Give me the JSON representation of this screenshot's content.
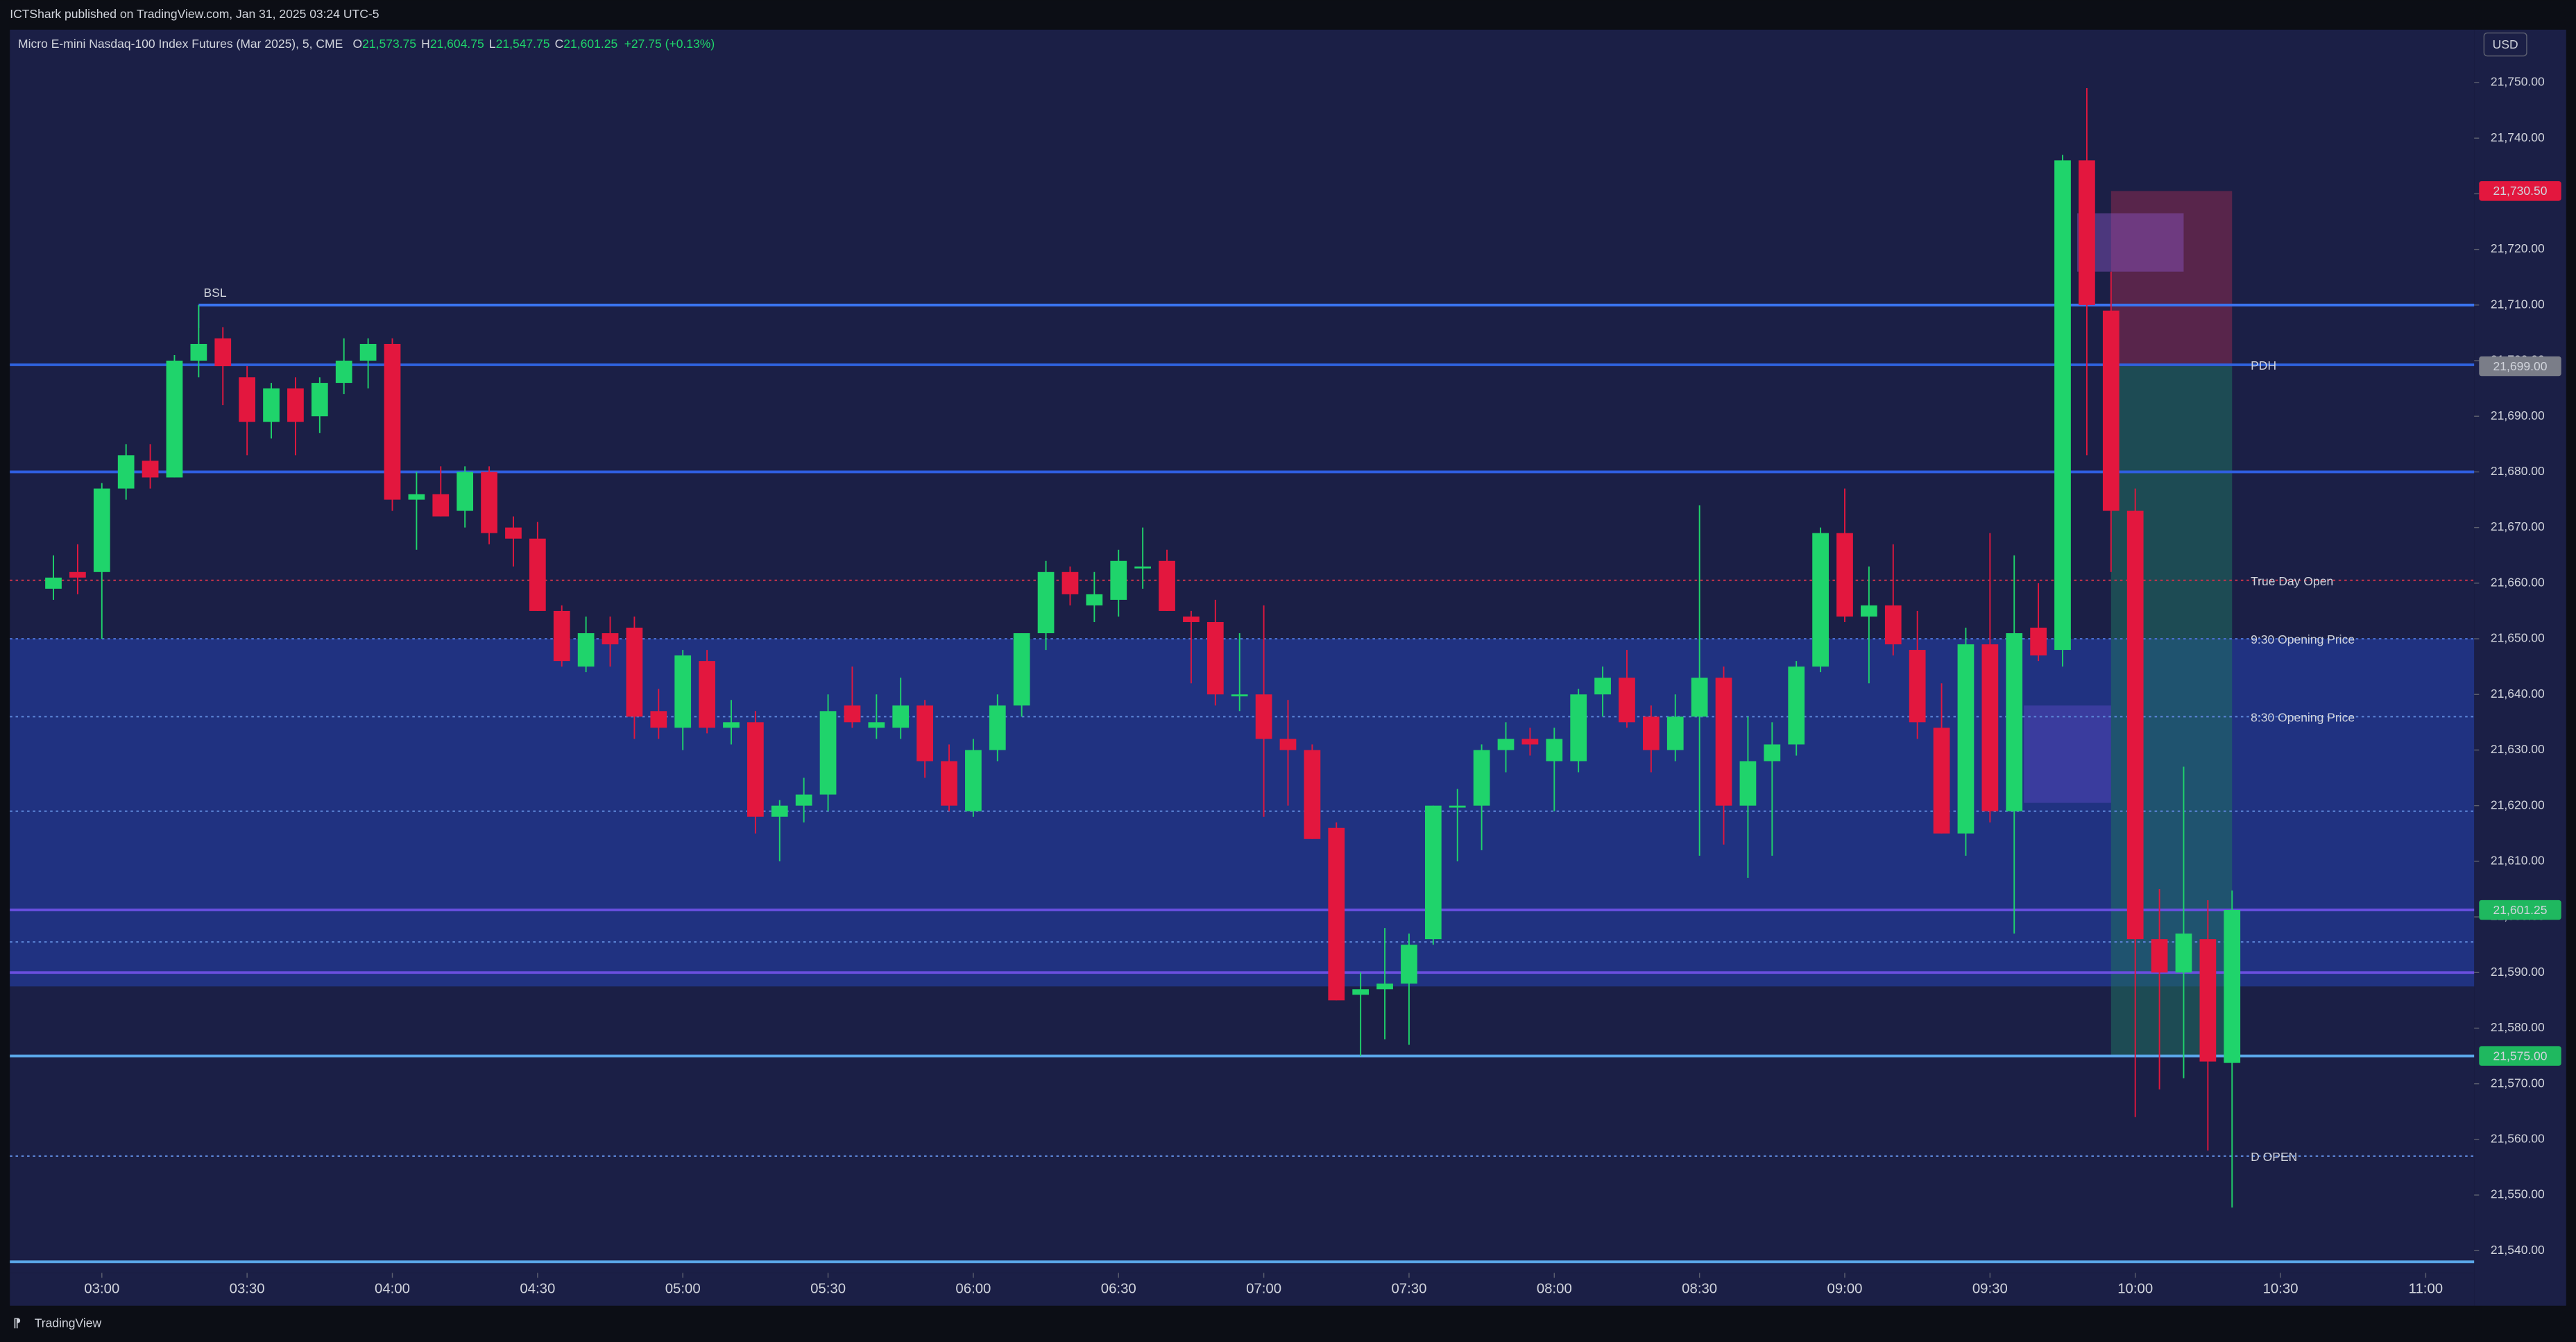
{
  "chart_data": {
    "type": "candlestick",
    "attribution": "ICTShark published on TradingView.com, Jan 31, 2025 03:24 UTC-5",
    "title": "Micro E-mini Nasdaq-100 Index Futures (Mar 2025), 5, CME",
    "ohlc": [
      {
        "key": "O",
        "text": "21,573.75"
      },
      {
        "key": "H",
        "text": "21,604.75"
      },
      {
        "key": "L",
        "text": "21,547.75"
      },
      {
        "key": "C",
        "text": "21,601.25"
      }
    ],
    "change": "+27.75 (+0.13%)",
    "currency": "USD",
    "brand": "TradingView",
    "up_color": "#1fd46b",
    "down_color": "#e3173e",
    "grid": false,
    "x": [
      "02:50",
      "02:55",
      "03:00",
      "03:05",
      "03:10",
      "03:15",
      "03:20",
      "03:25",
      "03:30",
      "03:35",
      "03:40",
      "03:45",
      "03:50",
      "03:55",
      "04:00",
      "04:05",
      "04:10",
      "04:15",
      "04:20",
      "04:25",
      "04:30",
      "04:35",
      "04:40",
      "04:45",
      "04:50",
      "04:55",
      "05:00",
      "05:05",
      "05:10",
      "05:15",
      "05:20",
      "05:25",
      "05:30",
      "05:35",
      "05:40",
      "05:45",
      "05:50",
      "05:55",
      "06:00",
      "06:05",
      "06:10",
      "06:15",
      "06:20",
      "06:25",
      "06:30",
      "06:35",
      "06:40",
      "06:45",
      "06:50",
      "06:55",
      "07:00",
      "07:05",
      "07:10",
      "07:15",
      "07:20",
      "07:25",
      "07:30",
      "07:35",
      "07:40",
      "07:45",
      "07:50",
      "07:55",
      "08:00",
      "08:05",
      "08:10",
      "08:15",
      "08:20",
      "08:25",
      "08:30",
      "08:35",
      "08:40",
      "08:45",
      "08:50",
      "08:55",
      "09:00",
      "09:05",
      "09:10",
      "09:15",
      "09:20",
      "09:25",
      "09:30",
      "09:35",
      "09:40",
      "09:45",
      "09:50",
      "09:55",
      "10:00",
      "10:05",
      "10:10",
      "10:15",
      "10:20"
    ],
    "open": [
      21659,
      21662,
      21662,
      21677,
      21682,
      21679,
      21700,
      21704,
      21697,
      21689,
      21695,
      21690,
      21696,
      21700,
      21703,
      21675,
      21676,
      21673,
      21680,
      21670,
      21668,
      21655,
      21645,
      21651,
      21652,
      21637,
      21634,
      21646,
      21634,
      21635,
      21618,
      21620,
      21622,
      21638,
      21634,
      21634,
      21638,
      21628,
      21619,
      21630,
      21638,
      21651,
      21662,
      21656,
      21657,
      21663,
      21664,
      21654,
      21653,
      21640,
      21640,
      21632,
      21630,
      21616,
      21586,
      21587,
      21588,
      21596,
      21620,
      21620,
      21630,
      21632,
      21628,
      21628,
      21640,
      21643,
      21636,
      21630,
      21636,
      21643,
      21620,
      21628,
      21631,
      21645,
      21669,
      21654,
      21656,
      21648,
      21634,
      21615,
      21649,
      21619,
      21652,
      21648,
      21736,
      21709,
      21673,
      21596,
      21590,
      21596,
      21573.75
    ],
    "high": [
      21665,
      21667,
      21678,
      21685,
      21685,
      21701,
      21710,
      21706,
      21699,
      21696,
      21697,
      21697,
      21704,
      21704,
      21704,
      21680,
      21681,
      21681,
      21681,
      21672,
      21671,
      21656,
      21654,
      21654,
      21654,
      21641,
      21648,
      21648,
      21639,
      21637,
      21621,
      21625,
      21640,
      21645,
      21640,
      21643,
      21639,
      21631,
      21632,
      21640,
      21651,
      21664,
      21663,
      21662,
      21666,
      21670,
      21666,
      21655,
      21657,
      21651,
      21656,
      21639,
      21631,
      21617,
      21590,
      21598,
      21597,
      21620,
      21623,
      21631,
      21635,
      21634,
      21634,
      21641,
      21645,
      21648,
      21638,
      21640,
      21674,
      21645,
      21636,
      21635,
      21646,
      21670,
      21677,
      21663,
      21667,
      21655,
      21642,
      21652,
      21669,
      21665,
      21660,
      21737,
      21749,
      21716,
      21677,
      21605,
      21627,
      21603,
      21604.75
    ],
    "low": [
      21657,
      21658,
      21650,
      21675,
      21677,
      21679,
      21697,
      21692,
      21683,
      21686,
      21683,
      21687,
      21694,
      21695,
      21673,
      21666,
      21672,
      21670,
      21667,
      21663,
      21655,
      21645,
      21644,
      21645,
      21632,
      21632,
      21630,
      21633,
      21631,
      21615,
      21610,
      21617,
      21619,
      21634,
      21632,
      21632,
      21625,
      21619,
      21618,
      21628,
      21636,
      21648,
      21656,
      21653,
      21654,
      21659,
      21655,
      21642,
      21638,
      21637,
      21618,
      21620,
      21614,
      21585,
      21575,
      21578,
      21577,
      21595,
      21610,
      21612,
      21626,
      21629,
      21619,
      21626,
      21636,
      21634,
      21626,
      21628,
      21611,
      21613,
      21607,
      21611,
      21629,
      21644,
      21653,
      21642,
      21647,
      21632,
      21615,
      21611,
      21617,
      21597,
      21646,
      21645,
      21683,
      21662,
      21564,
      21569,
      21571,
      21558,
      21547.75
    ],
    "close": [
      21661,
      21661,
      21677,
      21683,
      21679,
      21700,
      21703,
      21699,
      21689,
      21695,
      21689,
      21696,
      21700,
      21703,
      21675,
      21676,
      21672,
      21680,
      21669,
      21668,
      21655,
      21646,
      21651,
      21649,
      21636,
      21634,
      21647,
      21634,
      21635,
      21618,
      21620,
      21622,
      21637,
      21635,
      21635,
      21638,
      21628,
      21620,
      21630,
      21638,
      21651,
      21662,
      21658,
      21658,
      21664,
      21663,
      21655,
      21653,
      21640,
      21640,
      21632,
      21630,
      21614,
      21585,
      21587,
      21588,
      21595,
      21620,
      21620,
      21630,
      21632,
      21631,
      21632,
      21640,
      21643,
      21635,
      21630,
      21636,
      21643,
      21620,
      21628,
      21631,
      21645,
      21669,
      21654,
      21656,
      21649,
      21635,
      21615,
      21649,
      21619,
      21651,
      21647,
      21736,
      21710,
      21673,
      21596,
      21590,
      21597,
      21574,
      21601.25
    ],
    "xlim": [
      "02:41",
      "11:10"
    ],
    "xticks": [
      "03:00",
      "03:30",
      "04:00",
      "04:30",
      "05:00",
      "05:30",
      "06:00",
      "06:30",
      "07:00",
      "07:30",
      "08:00",
      "08:30",
      "09:00",
      "09:30",
      "10:00",
      "10:30",
      "11:00"
    ],
    "ylim": [
      21536,
      21759.5
    ],
    "yticks": [
      {
        "value": 21540,
        "label": "21,540.00"
      },
      {
        "value": 21550,
        "label": "21,550.00"
      },
      {
        "value": 21560,
        "label": "21,560.00"
      },
      {
        "value": 21570,
        "label": "21,570.00"
      },
      {
        "value": 21580,
        "label": "21,580.00"
      },
      {
        "value": 21590,
        "label": "21,590.00"
      },
      {
        "value": 21600,
        "label": "21,600.00"
      },
      {
        "value": 21610,
        "label": "21,610.00"
      },
      {
        "value": 21620,
        "label": "21,620.00"
      },
      {
        "value": 21630,
        "label": "21,630.00"
      },
      {
        "value": 21640,
        "label": "21,640.00"
      },
      {
        "value": 21650,
        "label": "21,650.00"
      },
      {
        "value": 21660,
        "label": "21,660.00"
      },
      {
        "value": 21670,
        "label": "21,670.00"
      },
      {
        "value": 21680,
        "label": "21,680.00"
      },
      {
        "value": 21690,
        "label": "21,690.00"
      },
      {
        "value": 21700,
        "label": "21,700.00"
      },
      {
        "value": 21710,
        "label": "21,710.00"
      },
      {
        "value": 21720,
        "label": "21,720.00"
      },
      {
        "value": 21730,
        "label": "21,730.00"
      },
      {
        "value": 21740,
        "label": "21,740.00"
      },
      {
        "value": 21750,
        "label": "21,750.00"
      }
    ],
    "zones": [
      {
        "y": [
          21587.5,
          21650
        ],
        "color": "#2440a8",
        "opacity": 0.6
      },
      {
        "x": [
          "09:55",
          "10:20"
        ],
        "y": [
          21699,
          21730.5
        ],
        "color": "#8a2a50",
        "opacity": 0.55
      },
      {
        "x": [
          "09:55",
          "10:20"
        ],
        "y": [
          21575,
          21699
        ],
        "color": "#1f7060",
        "opacity": 0.55
      },
      {
        "x": [
          "09:48",
          "10:10"
        ],
        "y": [
          21716,
          21726.5
        ],
        "color": "#8a55c0",
        "opacity": 0.45
      },
      {
        "x": [
          "09:37",
          "09:55"
        ],
        "y": [
          21620.5,
          21638
        ],
        "color": "#5a4ac0",
        "opacity": 0.45
      }
    ],
    "levels": [
      {
        "name": "BSL",
        "value": 21710,
        "color": "#3a74f0",
        "style": "solid",
        "start": "03:20"
      },
      {
        "name": "PDH",
        "value": 21699.25,
        "color": "#2f63e0",
        "style": "solid"
      },
      {
        "value": 21680,
        "color": "#2f5ee0",
        "style": "solid"
      },
      {
        "name": "True Day Open",
        "value": 21660.5,
        "color": "#c2334b",
        "style": "dotted"
      },
      {
        "name": "9:30 Opening Price",
        "value": 21650,
        "color": "#4a6fd0",
        "style": "dotted"
      },
      {
        "name": "8:30 Opening Price",
        "value": 21636,
        "color": "#5b84d6",
        "style": "dotted"
      },
      {
        "value": 21619,
        "color": "#5b84d6",
        "style": "dotted"
      },
      {
        "value": 21601.25,
        "color": "#6a4fe0",
        "style": "solid"
      },
      {
        "value": 21595.5,
        "color": "#5b84d6",
        "style": "dotted"
      },
      {
        "value": 21590,
        "color": "#6a4fe0",
        "style": "solid"
      },
      {
        "value": 21575,
        "color": "#5aa6e8",
        "style": "solid"
      },
      {
        "name": "D OPEN",
        "value": 21557,
        "color": "#5b84d6",
        "style": "dotted"
      },
      {
        "value": 21538,
        "color": "#5aa6e8",
        "style": "solid"
      }
    ],
    "price_labels": [
      {
        "value": 21730.5,
        "label": "21,730.50",
        "color": "#e3173e"
      },
      {
        "value": 21699,
        "label": "21,699.00",
        "color": "#7a7d88"
      },
      {
        "value": 21601.25,
        "label": "21,601.25",
        "color": "#1fb85f"
      },
      {
        "value": 21575,
        "label": "21,575.00",
        "color": "#1fb85f"
      }
    ]
  }
}
